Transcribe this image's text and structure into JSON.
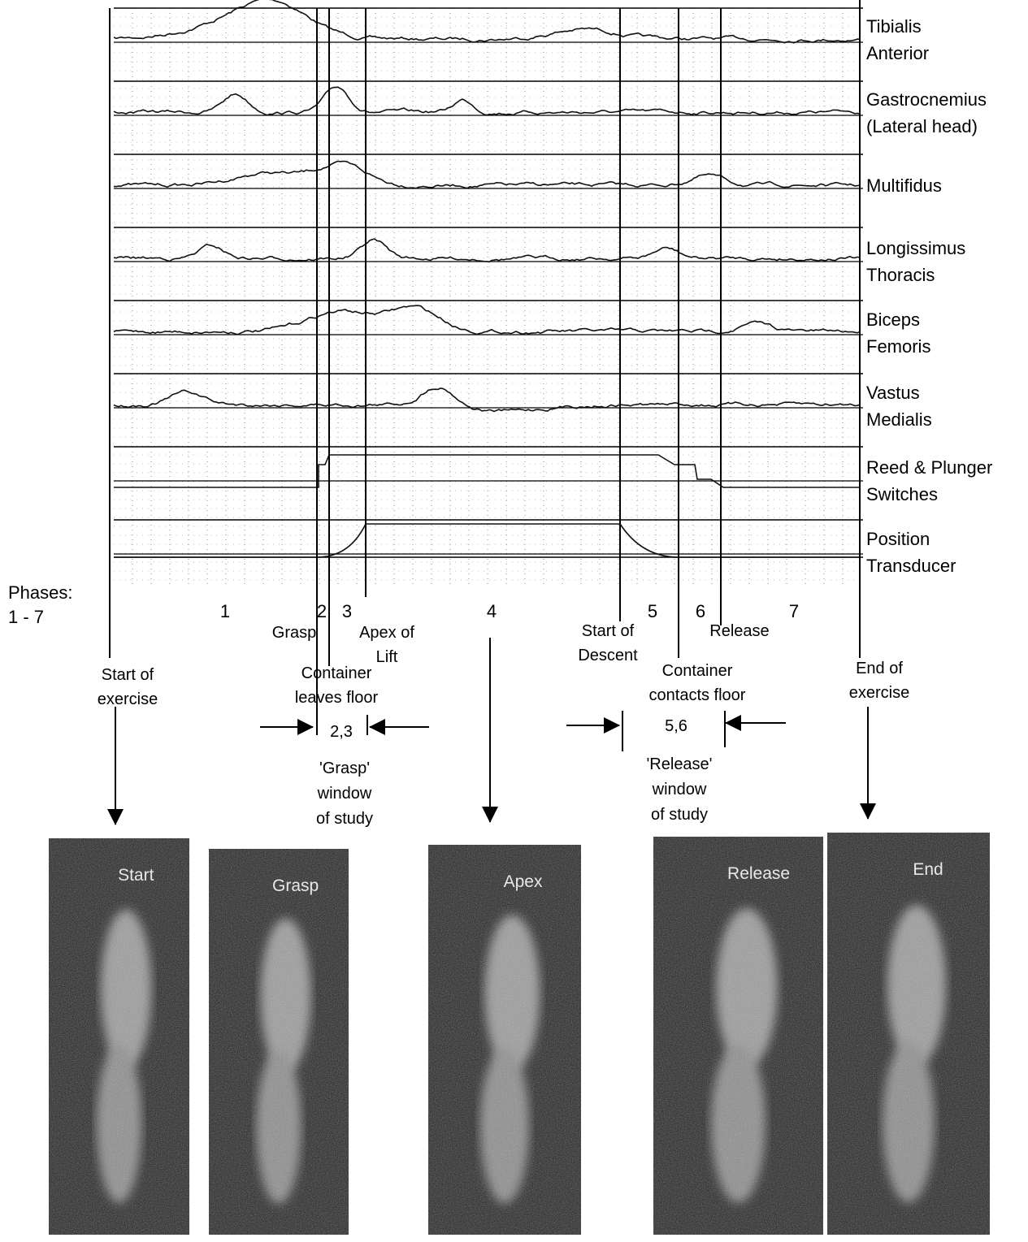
{
  "channels": [
    {
      "label": [
        "Tibialis",
        "Anterior"
      ]
    },
    {
      "label": [
        "Gastrocnemius",
        "(Lateral head)"
      ]
    },
    {
      "label": [
        "Multifidus"
      ]
    },
    {
      "label": [
        "Longissimus",
        "Thoracis"
      ]
    },
    {
      "label": [
        "Biceps",
        "Femoris"
      ]
    },
    {
      "label": [
        "Vastus",
        "Medialis"
      ]
    },
    {
      "label": [
        "Reed & Plunger",
        "Switches"
      ]
    },
    {
      "label": [
        "Position",
        "Transducer"
      ]
    }
  ],
  "phases": {
    "label": [
      "Phases:",
      "1 - 7"
    ],
    "numbers": [
      "1",
      "2",
      "3",
      "4",
      "5",
      "6",
      "7"
    ]
  },
  "events": [
    {
      "label": [
        "Grasp"
      ]
    },
    {
      "label": [
        "Apex of",
        "Lift"
      ]
    },
    {
      "label": [
        "Start of",
        "Descent"
      ]
    },
    {
      "label": [
        "Release"
      ]
    },
    {
      "label": [
        "Start of",
        "exercise"
      ]
    },
    {
      "label": [
        "Container",
        "leaves floor"
      ]
    },
    {
      "label": [
        "Container",
        "contacts floor"
      ]
    },
    {
      "label": [
        "End of",
        "exercise"
      ]
    }
  ],
  "windows": [
    {
      "range": "2,3",
      "label": [
        "'Grasp'",
        "window",
        "of study"
      ]
    },
    {
      "range": "5,6",
      "label": [
        "'Release'",
        "window",
        "of study"
      ]
    }
  ],
  "photos": [
    {
      "caption": "Start"
    },
    {
      "caption": "Grasp"
    },
    {
      "caption": "Apex"
    },
    {
      "caption": "Release"
    },
    {
      "caption": "End"
    }
  ]
}
